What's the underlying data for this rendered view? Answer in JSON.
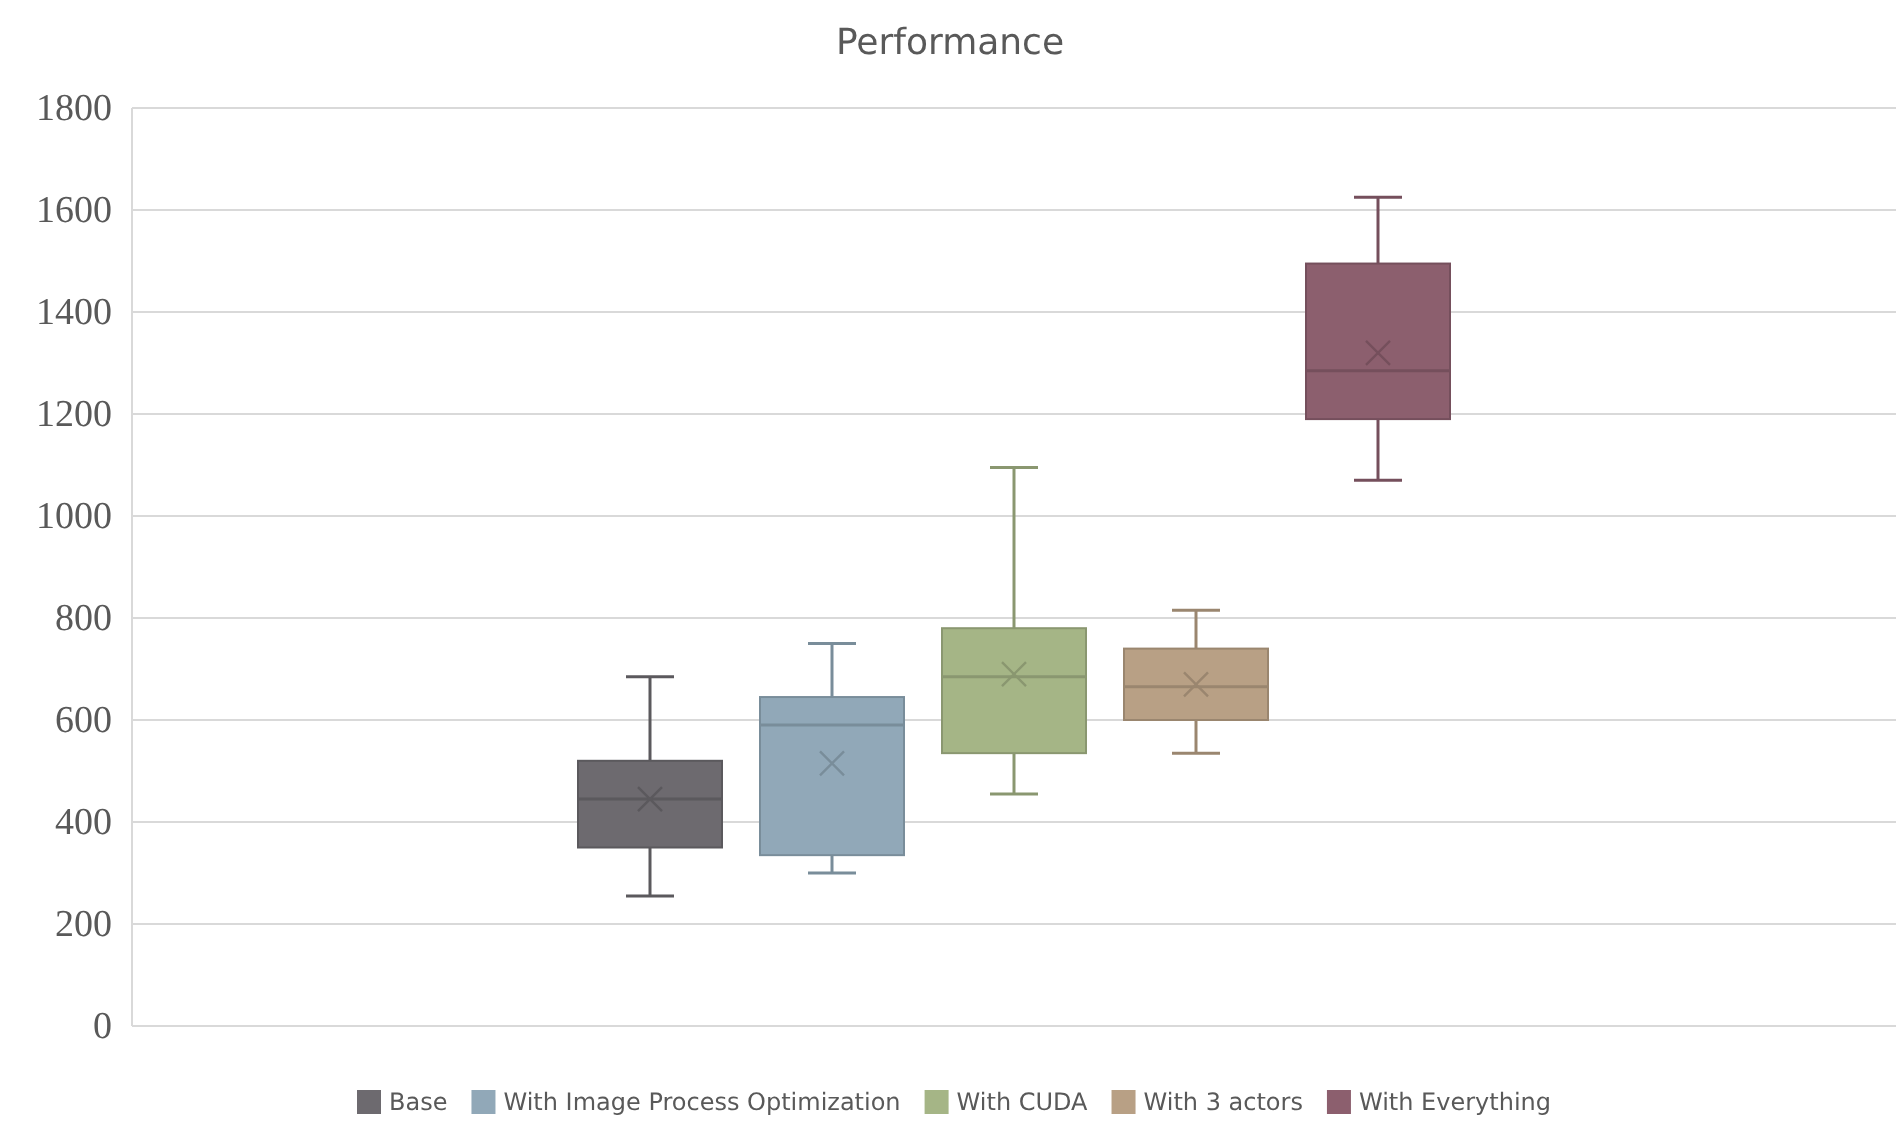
{
  "chart_data": {
    "type": "box",
    "title": "Performance",
    "categories": [
      null
    ],
    "ylim": [
      0,
      1800
    ],
    "yticks": [
      0,
      200,
      400,
      600,
      800,
      1000,
      1200,
      1400,
      1600,
      1800
    ],
    "grid": "y",
    "legend": "bottom",
    "series": [
      {
        "name": "Base",
        "color": "#6d6a6f",
        "boxes": [
          {
            "low": 255,
            "q1": 350,
            "median": 445,
            "q3": 520,
            "high": 685,
            "mean": 445
          }
        ]
      },
      {
        "name": "With Image Process Optimization",
        "color": "#91a8b8",
        "boxes": [
          {
            "low": 300,
            "q1": 335,
            "median": 590,
            "q3": 645,
            "high": 750,
            "mean": 515
          }
        ]
      },
      {
        "name": "With CUDA",
        "color": "#a5b586",
        "boxes": [
          {
            "low": 455,
            "q1": 535,
            "median": 685,
            "q3": 780,
            "high": 1095,
            "mean": 690
          }
        ]
      },
      {
        "name": "With 3 actors",
        "color": "#b8a085",
        "boxes": [
          {
            "low": 535,
            "q1": 600,
            "median": 665,
            "q3": 740,
            "high": 815,
            "mean": 670
          }
        ]
      },
      {
        "name": "With Everything",
        "color": "#8c5f6e",
        "boxes": [
          {
            "low": 1070,
            "q1": 1190,
            "median": 1285,
            "q3": 1495,
            "high": 1625,
            "mean": 1320
          }
        ]
      }
    ]
  }
}
